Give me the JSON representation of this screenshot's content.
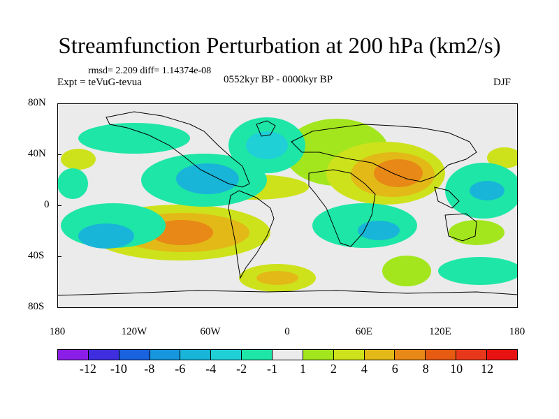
{
  "title": "Streamfunction Perturbation at 200 hPa (km2/s)",
  "stats": "rmsd= 2.209 diff= 1.14374e-08",
  "experiment": "Expt = teVuG-tevua",
  "period": "0552kyr BP - 0000kyr BP",
  "season": "DJF",
  "y_labels": [
    "80N",
    "40N",
    "0",
    "40S",
    "80S"
  ],
  "x_labels": [
    "180",
    "120W",
    "60W",
    "0",
    "60E",
    "120E",
    "180"
  ],
  "colorbar": {
    "labels": [
      "-12",
      "-10",
      "-8",
      "-6",
      "-4",
      "-2",
      "-1",
      "1",
      "2",
      "4",
      "6",
      "8",
      "10",
      "12"
    ],
    "colors": [
      "#8b1ee6",
      "#3f2de0",
      "#1a63e0",
      "#1696dc",
      "#18b5d8",
      "#1fd0d6",
      "#1ee6a6",
      "#ebebeb",
      "#a3e61e",
      "#cde21b",
      "#e2b917",
      "#e88816",
      "#e65a12",
      "#e8381c",
      "#e81212"
    ]
  }
}
